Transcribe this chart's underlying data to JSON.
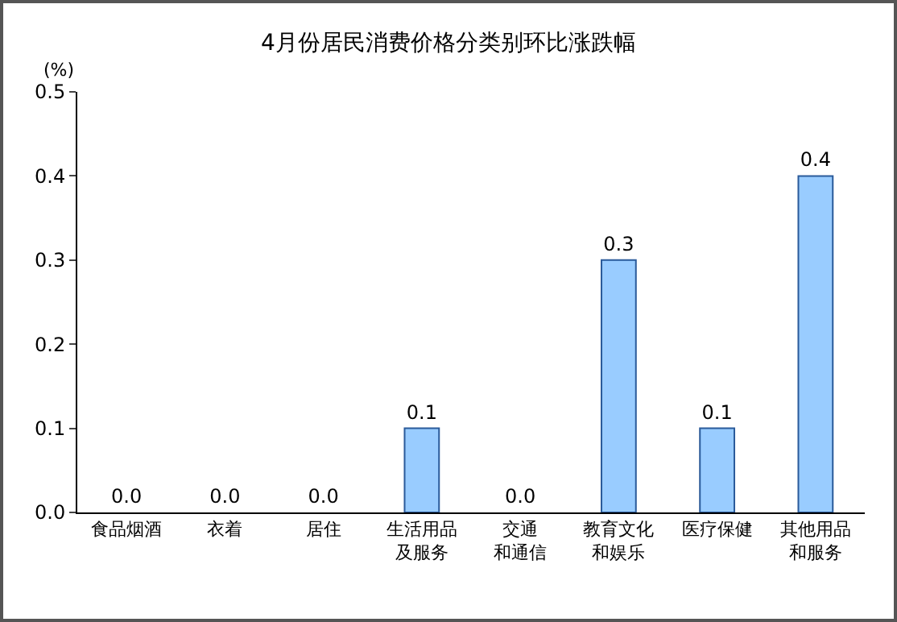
{
  "chart_data": {
    "type": "bar",
    "title": "4月份居民消费价格分类别环比涨跌幅",
    "ylabel": "(%)",
    "categories": [
      "食品烟酒",
      "衣着",
      "居住",
      "生活用品及服务",
      "交通和通信",
      "教育文化和娱乐",
      "医疗保健",
      "其他用品和服务"
    ],
    "values": [
      0,
      0,
      0,
      0.1,
      0,
      0.3,
      0.1,
      0.4
    ],
    "value_labels": [
      "0.0",
      "0.0",
      "0.0",
      "0.1",
      "0.0",
      "0.3",
      "0.1",
      "0.4"
    ],
    "color": "#99ccff",
    "ylim": [
      0,
      0.5
    ],
    "yticks": [
      {
        "value": 0,
        "label": "0.0"
      },
      {
        "value": 0.1,
        "label": "0.1"
      },
      {
        "value": 0.2,
        "label": "0.2"
      },
      {
        "value": 0.3,
        "label": "0.3"
      },
      {
        "value": 0.4,
        "label": "0.4"
      },
      {
        "value": 0.5,
        "label": "0.5"
      }
    ],
    "grid": false,
    "legend": false
  }
}
